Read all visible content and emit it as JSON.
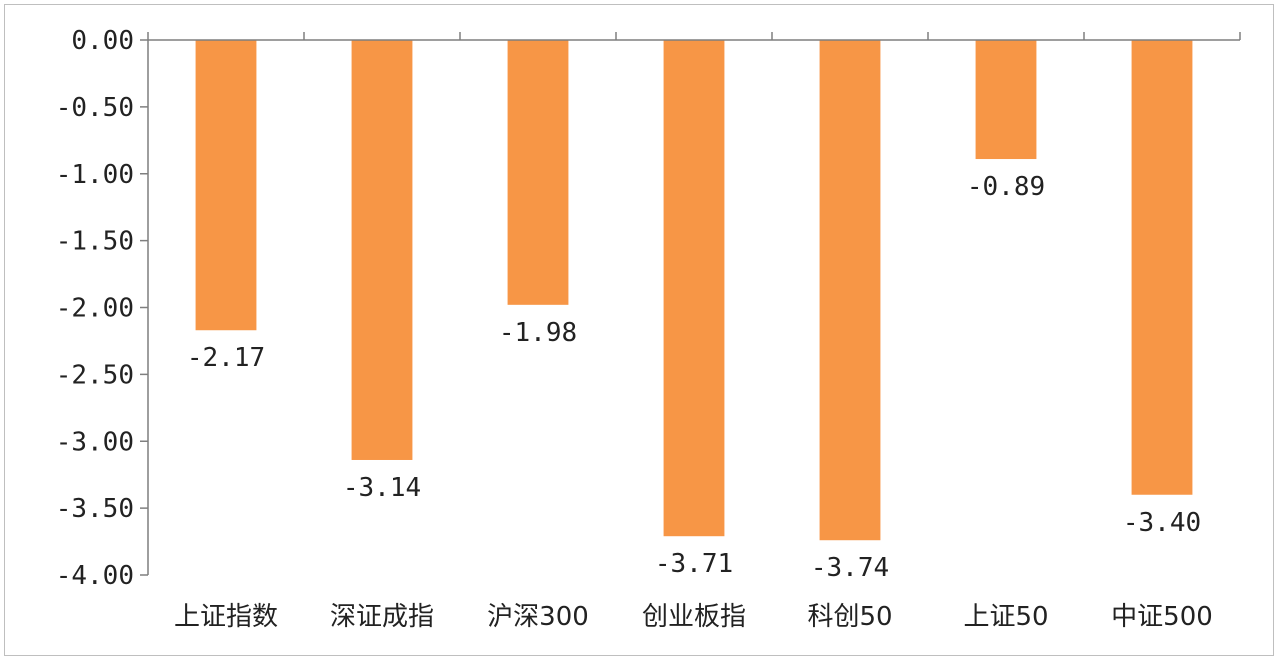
{
  "chart_data": {
    "type": "bar",
    "title": "",
    "xlabel": "",
    "ylabel": "",
    "categories": [
      "上证指数",
      "深证成指",
      "沪深300",
      "创业板指",
      "科创50",
      "上证50",
      "中证500"
    ],
    "values": [
      -2.17,
      -3.14,
      -1.98,
      -3.71,
      -3.74,
      -0.89,
      -3.4
    ],
    "value_labels": [
      "-2.17",
      "-3.14",
      "-1.98",
      "-3.71",
      "-3.74",
      "-0.89",
      "-3.40"
    ],
    "ylim": [
      -4.0,
      0.0
    ],
    "yticks": [
      0.0,
      -0.5,
      -1.0,
      -1.5,
      -2.0,
      -2.5,
      -3.0,
      -3.5,
      -4.0
    ],
    "ytick_labels": [
      "0.00",
      "-0.50",
      "-1.00",
      "-1.50",
      "-2.00",
      "-2.50",
      "-3.00",
      "-3.50",
      "-4.00"
    ],
    "grid": false,
    "legend": "none",
    "bar_color": "#F79646",
    "axis_color": "#7f7f7f",
    "text_color": "#222222"
  }
}
